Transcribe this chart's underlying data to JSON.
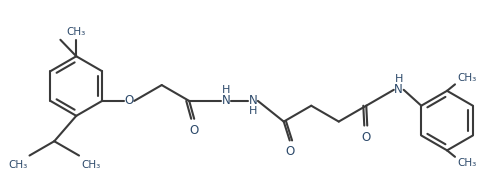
{
  "bg_color": "#ffffff",
  "line_color": "#3a3a3a",
  "label_color": "#2d4a6b",
  "line_width": 1.5,
  "font_size": 8.5,
  "figsize": [
    4.91,
    1.86
  ],
  "dpi": 100,
  "xlim": [
    0,
    49.1
  ],
  "ylim": [
    0,
    18.6
  ]
}
